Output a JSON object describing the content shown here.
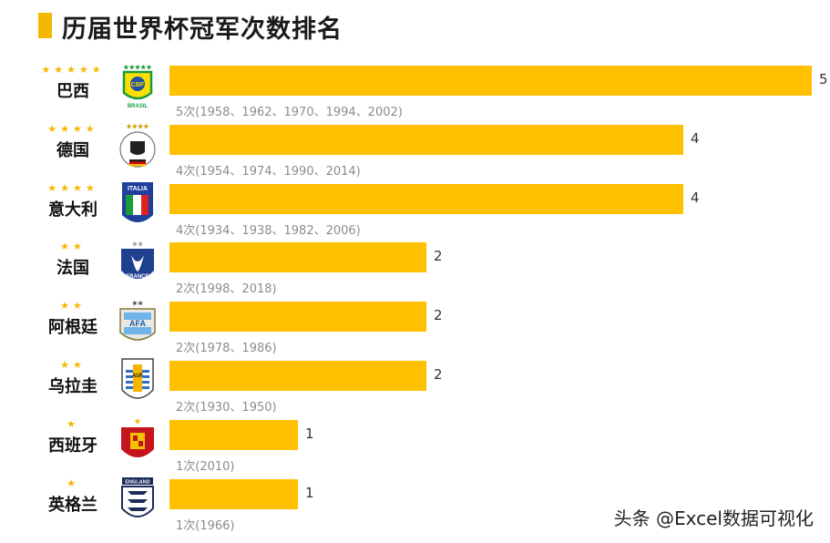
{
  "title": "历届世界杯冠军次数排名",
  "watermark": "头条 @Excel数据可视化",
  "colors": {
    "bar": "#ffc000",
    "accent": "#f5b800",
    "star": "#f5b800"
  },
  "chart_data": {
    "type": "bar",
    "orientation": "horizontal",
    "title": "历届世界杯冠军次数排名",
    "xlim": [
      0,
      5
    ],
    "grid": false,
    "categories": [
      "巴西",
      "德国",
      "意大利",
      "法国",
      "阿根廷",
      "乌拉圭",
      "西班牙",
      "英格兰"
    ],
    "values": [
      5,
      4,
      4,
      2,
      2,
      2,
      1,
      1
    ],
    "value_labels": [
      "5",
      "4",
      "4",
      "2",
      "2",
      "2",
      "1",
      "1"
    ],
    "stars": [
      "★★★★★",
      "★★★★",
      "★★★★",
      "★★",
      "★★",
      "★★",
      "★",
      "★"
    ],
    "annotations": [
      "5次(1958、1962、1970、1994、2002)",
      "4次(1954、1974、1990、2014)",
      "4次(1934、1938、1982、2006)",
      "2次(1998、2018)",
      "2次(1978、1986)",
      "2次(1930、1950)",
      "1次(2010)",
      "1次(1966)"
    ],
    "badges": [
      {
        "icon": "brazil-crest-icon",
        "text": "CBF",
        "sub": "BRASIL",
        "stars": "★★★★★"
      },
      {
        "icon": "germany-crest-icon",
        "text": "",
        "sub": "",
        "stars": "★★★★"
      },
      {
        "icon": "italy-crest-icon",
        "text": "ITALIA",
        "sub": "",
        "stars": ""
      },
      {
        "icon": "france-crest-icon",
        "text": "FRANCE",
        "sub": "",
        "stars": "★★"
      },
      {
        "icon": "argentina-crest-icon",
        "text": "AFA",
        "sub": "",
        "stars": "★★"
      },
      {
        "icon": "uruguay-crest-icon",
        "text": "AUF",
        "sub": "",
        "stars": ""
      },
      {
        "icon": "spain-crest-icon",
        "text": "",
        "sub": "",
        "stars": "★"
      },
      {
        "icon": "england-crest-icon",
        "text": "ENGLAND",
        "sub": "",
        "stars": ""
      }
    ]
  }
}
